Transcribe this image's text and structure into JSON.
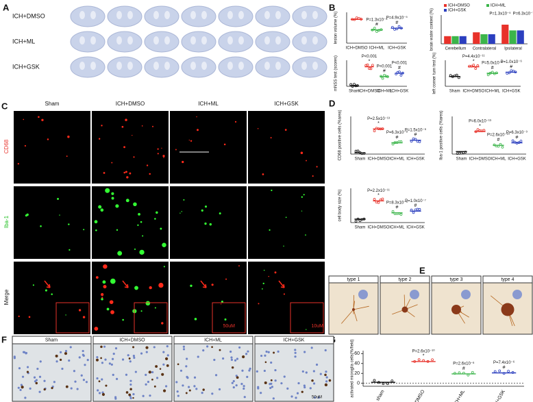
{
  "panel_labels": [
    "A",
    "B",
    "C",
    "D",
    "E",
    "F",
    "G"
  ],
  "panel_a": {
    "rows": [
      "ICH+DMSO",
      "ICH+ML",
      "ICH+GSK"
    ]
  },
  "panel_b": [
    {
      "type": "dot",
      "y_label": "lesion volume (%)",
      "categories": [
        "ICH+DMSO",
        "ICH+ML",
        "ICH+GSK"
      ],
      "colors": [
        "#e8322a",
        "#3bb54a",
        "#2b3fbf"
      ],
      "values": [
        27,
        15,
        17
      ],
      "ylim": [
        0,
        35
      ],
      "p_labels": [
        null,
        "P=1.3x10⁻⁵",
        "P=4.9x10⁻⁵"
      ],
      "sig_labels": [
        null,
        "#",
        "#"
      ]
    },
    {
      "type": "grouped_bar",
      "y_label": "brain water content (%)",
      "categories": [
        "Cerebellum",
        "Contralateral",
        "Ipsilateral"
      ],
      "ylim": [
        70,
        85
      ],
      "series": [
        {
          "name": "ICH+DMSO",
          "color": "#e8322a",
          "values": [
            74,
            76,
            80
          ]
        },
        {
          "name": "ICH+ML",
          "color": "#3bb54a",
          "values": [
            74,
            75,
            77
          ]
        },
        {
          "name": "ICH+GSK",
          "color": "#2b3fbf",
          "values": [
            74,
            75,
            77
          ]
        }
      ],
      "annotations": [
        "P=1.3x10⁻⁵",
        "P=6.3x10⁻⁷"
      ]
    },
    {
      "type": "dot",
      "y_label": "mNSS test (scores)",
      "categories": [
        "Sham",
        "ICH+DMSO",
        "ICH+ML",
        "ICH+GSK"
      ],
      "colors": [
        "#111111",
        "#e8322a",
        "#3bb54a",
        "#2b3fbf"
      ],
      "values": [
        0.3,
        9,
        4.5,
        6
      ],
      "ylim": [
        0,
        12
      ],
      "p_labels": [
        null,
        "P<0.001",
        "P<0.001",
        "P<0.001"
      ],
      "sig_labels": [
        null,
        "*",
        "#",
        "#"
      ]
    },
    {
      "type": "dot",
      "y_label": "left corner turn test (%)",
      "categories": [
        "Sham",
        "ICH+DMSO",
        "ICH+ML",
        "ICH+GSK"
      ],
      "colors": [
        "#111111",
        "#e8322a",
        "#3bb54a",
        "#2b3fbf"
      ],
      "values": [
        45,
        90,
        60,
        65
      ],
      "ylim": [
        0,
        120
      ],
      "p_labels": [
        null,
        "P=4.4x10⁻¹¹",
        "P=5.0x10⁻⁶",
        "P=1.0x10⁻⁶"
      ],
      "sig_labels": [
        null,
        "*",
        "#",
        "#"
      ]
    }
  ],
  "panel_c": {
    "columns": [
      "Sham",
      "ICH+DMSO",
      "ICH+ML",
      "ICH+GSK"
    ],
    "rows": [
      {
        "name": "CD68",
        "color": "#e8322a"
      },
      {
        "name": "Iba-1",
        "color": "#22c022"
      },
      {
        "name": "Merge",
        "color": "#111111"
      }
    ],
    "scale_labels": [
      "50uM",
      "10uM"
    ]
  },
  "panel_d": [
    {
      "type": "dot",
      "y_label": "CD68 positive cells (%area)",
      "categories": [
        "Sham",
        "ICH+DMSO",
        "ICH+ML",
        "ICH+GSK"
      ],
      "colors": [
        "#111111",
        "#e8322a",
        "#3bb54a",
        "#2b3fbf"
      ],
      "values": [
        1,
        20,
        9,
        11
      ],
      "ylim": [
        0,
        30
      ],
      "p_labels": [
        null,
        "P=2.5x10⁻¹³",
        "P=6.3x10⁻⁸",
        "P=1.5x10⁻⁶"
      ],
      "sig_labels": [
        null,
        "*",
        "#",
        "#"
      ]
    },
    {
      "type": "dot",
      "y_label": "Iba-1 positive cells (%area)",
      "categories": [
        "Sham",
        "ICH+DMSO",
        "ICH+ML",
        "ICH+GSK"
      ],
      "colors": [
        "#111111",
        "#e8322a",
        "#3bb54a",
        "#2b3fbf"
      ],
      "values": [
        1,
        9,
        3.5,
        4.5
      ],
      "ylim": [
        0,
        15
      ],
      "p_labels": [
        null,
        "P=6.0x10⁻¹³",
        "P=2.6x10⁻¹⁰",
        "P=6.3x10⁻⁹"
      ],
      "sig_labels": [
        null,
        "*",
        "#",
        "#"
      ]
    },
    {
      "type": "dot",
      "y_label": "cell body size (%)",
      "categories": [
        "Sham",
        "ICH+DMSO",
        "ICH+ML",
        "ICH+GSK"
      ],
      "colors": [
        "#111111",
        "#e8322a",
        "#3bb54a",
        "#2b3fbf"
      ],
      "values": [
        60,
        380,
        170,
        200
      ],
      "ylim": [
        0,
        600
      ],
      "p_labels": [
        null,
        "P=2.2x10⁻¹¹",
        "P=8.3x10⁻⁹",
        "P=1.0x10⁻⁷"
      ],
      "sig_labels": [
        null,
        "*",
        "#",
        "#"
      ]
    }
  ],
  "panel_e": [
    "type 1",
    "type 2",
    "type 3",
    "type 4"
  ],
  "panel_f": {
    "columns": [
      "Sham",
      "ICH+DMSO",
      "ICH+ML",
      "ICH+GSK"
    ],
    "scale_label": "50uM"
  },
  "panel_g": {
    "type": "dot",
    "y_label": "activated microglia cells(%/field)",
    "categories": [
      "sham",
      "ICH+DMSO",
      "ICH+ML",
      "ICH+GSK"
    ],
    "colors": [
      "#111111",
      "#e8322a",
      "#3bb54a",
      "#2b3fbf"
    ],
    "values": [
      2,
      44,
      19,
      21
    ],
    "ylim": [
      -6,
      66
    ],
    "yticks": [
      0,
      20,
      40,
      60
    ],
    "p_labels": [
      null,
      "P=2.6x10⁻¹⁰",
      "P=2.6x10⁻⁶",
      "P=7.4x10⁻⁶"
    ],
    "sig_labels": [
      null,
      "*",
      "#",
      "#"
    ]
  }
}
